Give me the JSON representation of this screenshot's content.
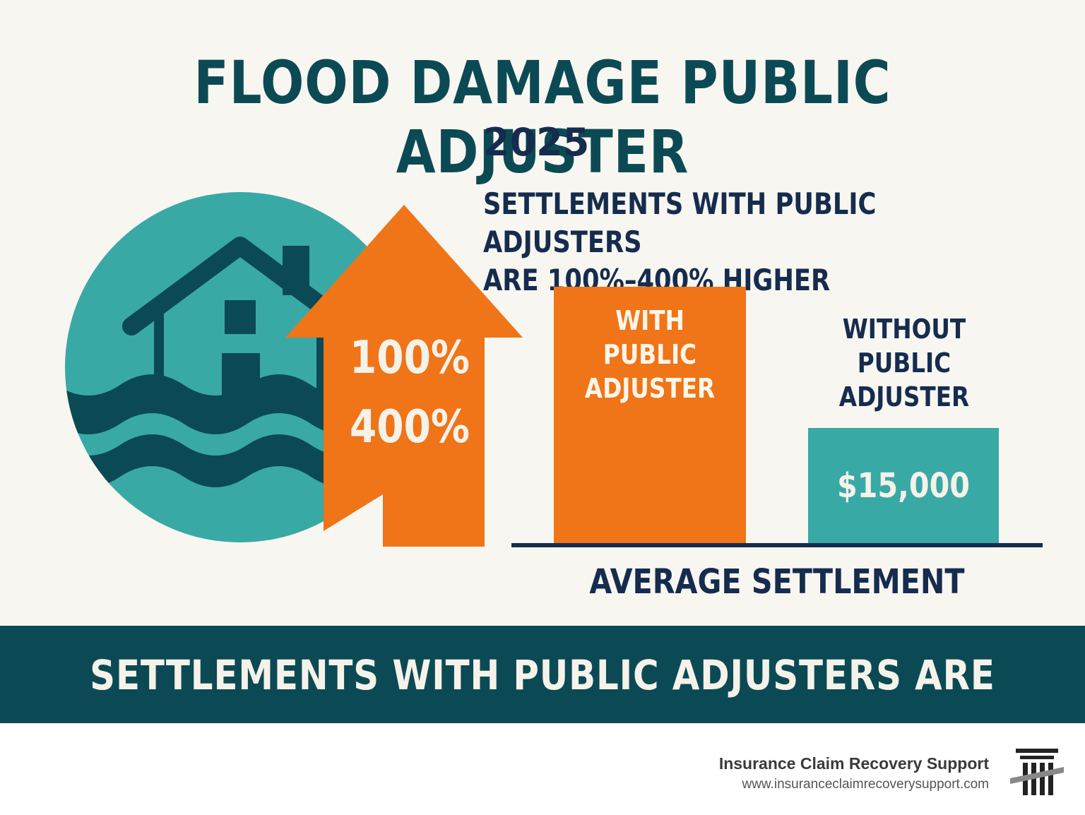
{
  "title": "FLOOD DAMAGE PUBLIC ADJUSTER",
  "year": "2025",
  "headline": {
    "line1": "SETTLEMENTS WITH PUBLIC ADJUSTERS",
    "line2": "ARE 100%–400% HIGHER"
  },
  "arrow": {
    "low": "100%",
    "high": "400%"
  },
  "bars": {
    "with": {
      "label_lines": [
        "WITH",
        "PUBLIC",
        "ADJUSTER"
      ]
    },
    "without": {
      "label_lines": [
        "WITHOUT",
        "PUBLIC",
        "ADJUSTER"
      ],
      "value": "$15,000"
    }
  },
  "axis_label": "AVERAGE SETTLEMENT",
  "banner": "SETTLEMENTS WITH PUBLIC ADJUSTERS ARE",
  "footer": {
    "brand_name": "Insurance Claim Recovery Support",
    "brand_url": "www.insuranceclaimrecoverysupport.com"
  },
  "icons": [
    "flooded-house-icon",
    "up-arrow-icon",
    "column-logo-icon"
  ],
  "colors": {
    "teal": "#39a9a5",
    "dark_teal": "#0b4a55",
    "orange": "#f07418",
    "navy": "#152c4e",
    "background": "#f8f6f0"
  }
}
